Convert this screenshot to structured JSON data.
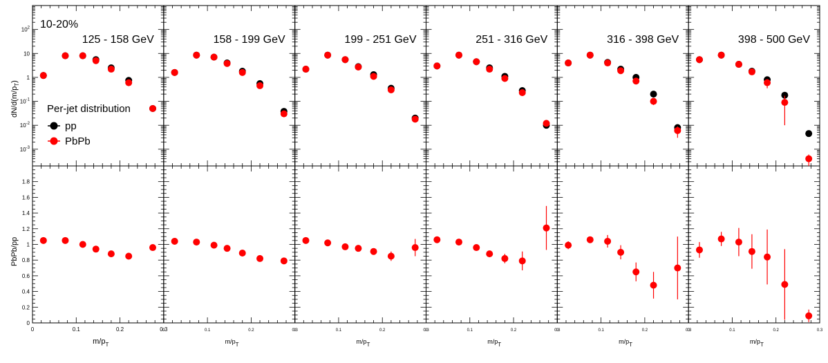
{
  "figure": {
    "centrality": "10-20%",
    "ylabel_top": "dN/d(m/p",
    "ylabel_top_sub": "T",
    "ylabel_top_suffix": ")",
    "ylabel_bottom": "PbPb/pp",
    "xlabel_main": "m/p",
    "xlabel_sub": "T",
    "legend_title": "Per-jet distribution",
    "legend_pp": "pp",
    "legend_pbpb": "PbPb",
    "colors": {
      "pp": "#000000",
      "pbpb": "#ff0000"
    }
  },
  "chart_data": {
    "type": "scatter",
    "x": [
      0.025,
      0.075,
      0.115,
      0.145,
      0.18,
      0.22,
      0.275
    ],
    "xlim": [
      0,
      0.3
    ],
    "x_ticks": [
      "0",
      "0.1",
      "0.2",
      "0.3"
    ],
    "top_yscale": "log",
    "top_ylim": [
      0.0002,
      1000
    ],
    "top_y_ticks": [
      "10^-3",
      "10^-2",
      "10^-1",
      "1",
      "10",
      "10^2"
    ],
    "bottom_ylim": [
      0,
      2
    ],
    "bottom_y_ticks": [
      "0",
      "0.2",
      "0.4",
      "0.6",
      "0.8",
      "1",
      "1.2",
      "1.4",
      "1.6",
      "1.8"
    ],
    "legend_placement": "left, lower part of first top panel",
    "panels": [
      {
        "label": "125 - 158 GeV",
        "pp": [
          1.2,
          8.0,
          8.0,
          5.5,
          2.5,
          0.75,
          0.05
        ],
        "pbpb": [
          1.2,
          8.0,
          8.0,
          5.0,
          2.2,
          0.6,
          0.05
        ],
        "pbpb_err": [
          0,
          0,
          0,
          0,
          0,
          0,
          0
        ],
        "ratio": [
          1.05,
          1.05,
          1.0,
          0.94,
          0.88,
          0.85,
          0.96
        ],
        "ratio_err": [
          0,
          0,
          0,
          0,
          0,
          0,
          0
        ]
      },
      {
        "label": "158 - 199 GeV",
        "pp": [
          1.6,
          8.5,
          7.0,
          4.0,
          1.8,
          0.55,
          0.038
        ],
        "pbpb": [
          1.6,
          8.5,
          7.0,
          3.8,
          1.6,
          0.45,
          0.03
        ],
        "pbpb_err": [
          0,
          0,
          0,
          0,
          0,
          0,
          0
        ],
        "ratio": [
          1.04,
          1.03,
          0.99,
          0.95,
          0.89,
          0.82,
          0.79
        ],
        "ratio_err": [
          0,
          0,
          0,
          0,
          0,
          0,
          0
        ]
      },
      {
        "label": "199 - 251 GeV",
        "pp": [
          2.2,
          8.5,
          5.5,
          2.8,
          1.3,
          0.35,
          0.02
        ],
        "pbpb": [
          2.2,
          8.5,
          5.5,
          2.7,
          1.1,
          0.3,
          0.018
        ],
        "pbpb_err": [
          0,
          0,
          0,
          0,
          0,
          0,
          0
        ],
        "ratio": [
          1.05,
          1.02,
          0.97,
          0.95,
          0.91,
          0.85,
          0.96
        ],
        "ratio_err": [
          0,
          0,
          0,
          0,
          0,
          0.06,
          0.11
        ]
      },
      {
        "label": "251 - 316 GeV",
        "pp": [
          3.0,
          8.5,
          4.5,
          2.5,
          1.1,
          0.28,
          0.01
        ],
        "pbpb": [
          3.0,
          8.5,
          4.5,
          2.2,
          0.9,
          0.23,
          0.012
        ],
        "pbpb_err": [
          0,
          0,
          0,
          0,
          0,
          0,
          0
        ],
        "ratio": [
          1.06,
          1.03,
          0.96,
          0.88,
          0.82,
          0.79,
          1.21
        ],
        "ratio_err": [
          0,
          0,
          0,
          0.03,
          0.06,
          0.12,
          0.28
        ]
      },
      {
        "label": "316 - 398 GeV",
        "pp": [
          4.0,
          8.5,
          4.2,
          2.2,
          1.0,
          0.2,
          0.008
        ],
        "pbpb": [
          4.0,
          8.5,
          4.0,
          1.9,
          0.7,
          0.1,
          0.006
        ],
        "pbpb_err": [
          0,
          0,
          0,
          0,
          0,
          0.03,
          0.003
        ],
        "ratio": [
          0.99,
          1.06,
          1.04,
          0.9,
          0.65,
          0.48,
          0.7
        ],
        "ratio_err": [
          0.05,
          0.04,
          0.08,
          0.09,
          0.12,
          0.17,
          0.4
        ]
      },
      {
        "label": "398 - 500 GeV",
        "pp": [
          5.5,
          8.5,
          3.5,
          1.8,
          0.8,
          0.18,
          0.0045
        ],
        "pbpb": [
          5.5,
          8.5,
          3.5,
          1.7,
          0.6,
          0.09,
          0.0004
        ],
        "pbpb_err": [
          0,
          0,
          0,
          0,
          0.25,
          0.08,
          0.0002
        ],
        "ratio": [
          0.93,
          1.07,
          1.03,
          0.91,
          0.84,
          0.49,
          0.09
        ],
        "ratio_err": [
          0.1,
          0.09,
          0.18,
          0.22,
          0.35,
          0.45,
          0.08
        ]
      }
    ]
  }
}
